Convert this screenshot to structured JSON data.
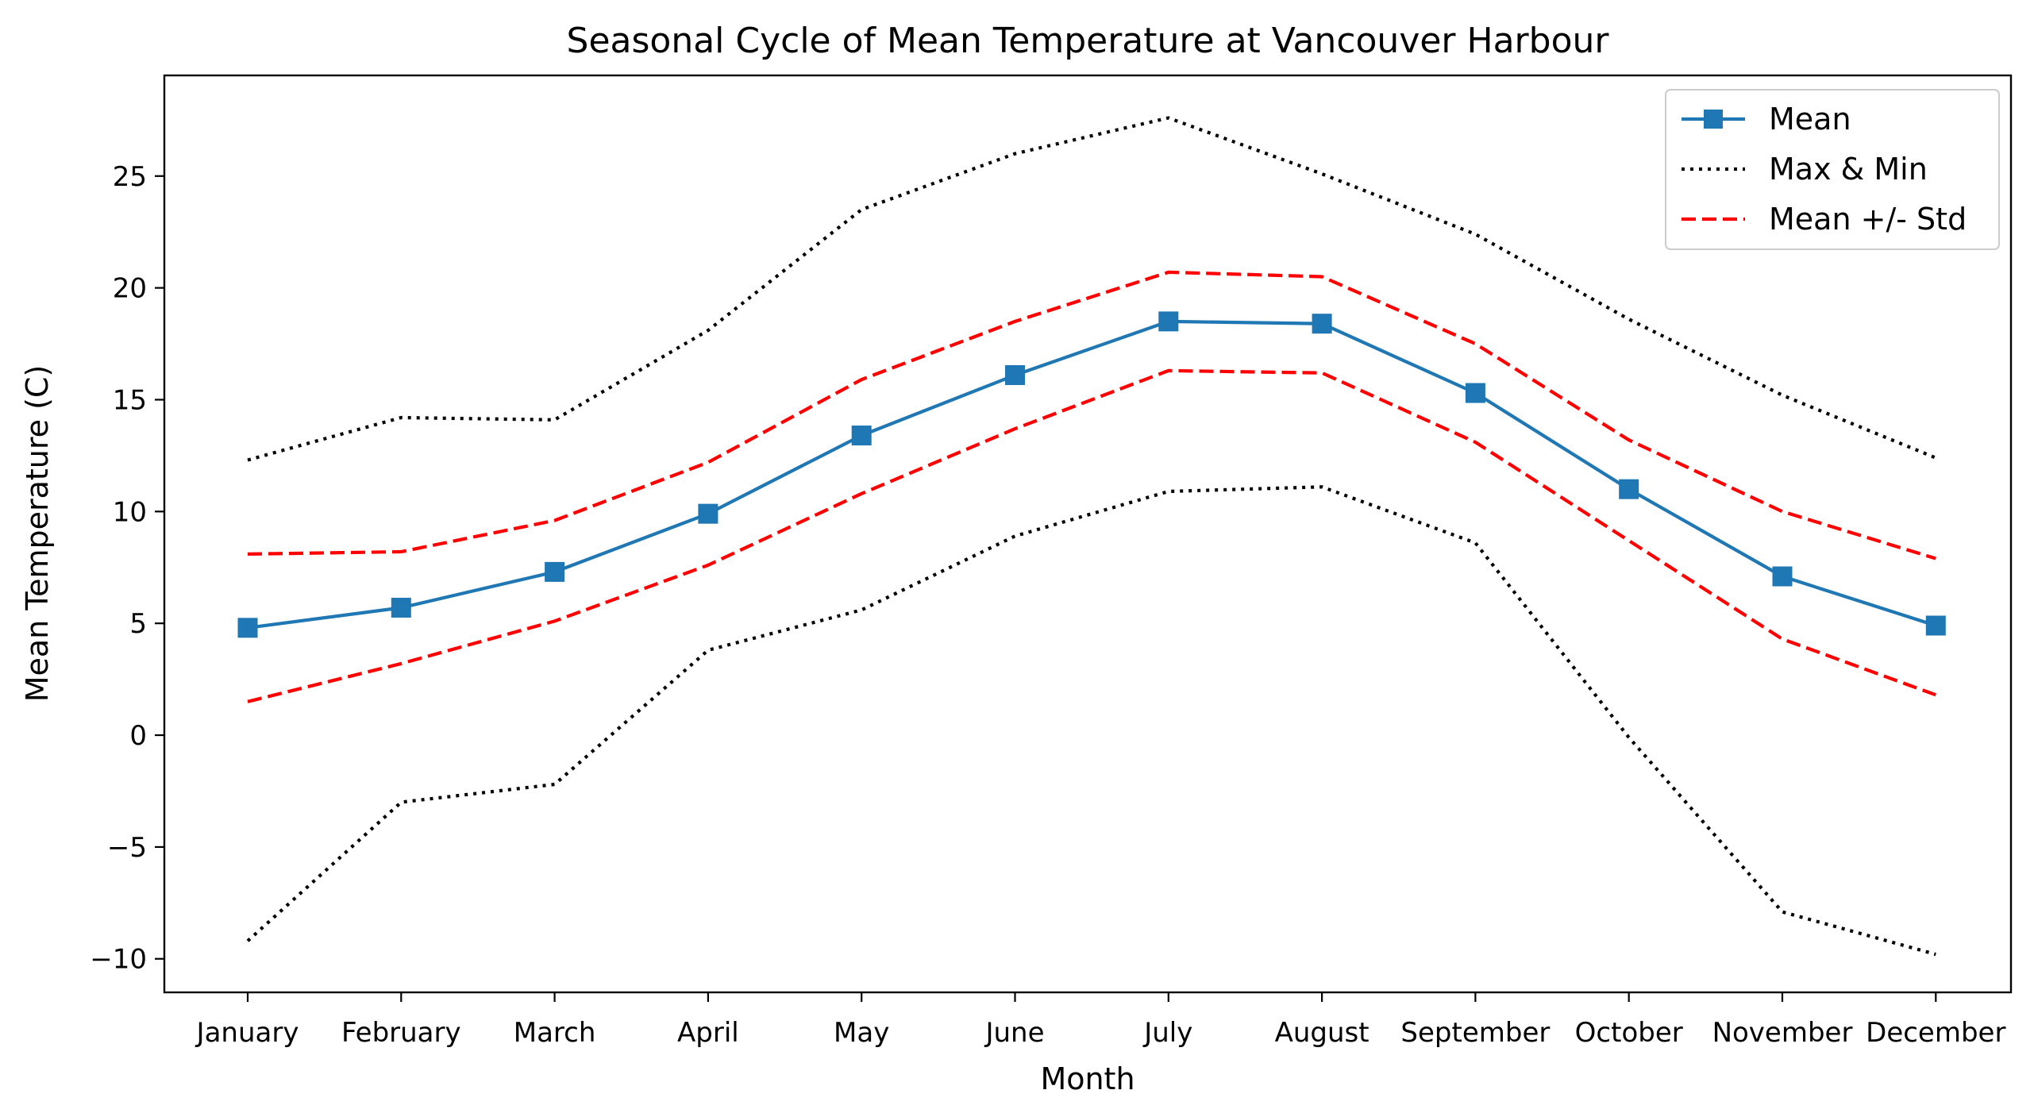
{
  "chart_data": {
    "type": "line",
    "title": "Seasonal Cycle of Mean Temperature at Vancouver Harbour",
    "xlabel": "Month",
    "ylabel": "Mean Temperature (C)",
    "ylim": [
      -11.5,
      29.5
    ],
    "yticks": [
      -10,
      -5,
      0,
      5,
      10,
      15,
      20,
      25
    ],
    "ytick_labels": [
      "−10",
      "−5",
      "0",
      "5",
      "10",
      "15",
      "20",
      "25"
    ],
    "categories": [
      "January",
      "February",
      "March",
      "April",
      "May",
      "June",
      "July",
      "August",
      "September",
      "October",
      "November",
      "December"
    ],
    "legend_position": "top-right",
    "grid": false,
    "series": [
      {
        "name": "Mean",
        "style": "solid-square-markers",
        "color": "#1f77b4",
        "values": [
          4.8,
          5.7,
          7.3,
          9.9,
          13.4,
          16.1,
          18.5,
          18.4,
          15.3,
          11.0,
          7.1,
          4.9
        ]
      },
      {
        "name": "Max & Min",
        "style": "dotted",
        "color": "#000000",
        "legend": true,
        "values": [
          12.3,
          14.2,
          14.1,
          18.1,
          23.5,
          26.0,
          27.6,
          25.1,
          22.4,
          18.6,
          15.2,
          12.4
        ]
      },
      {
        "name": "",
        "style": "dotted",
        "color": "#000000",
        "legend": false,
        "values": [
          -9.2,
          -3.0,
          -2.2,
          3.8,
          5.6,
          8.9,
          10.9,
          11.1,
          8.6,
          -0.1,
          -7.9,
          -9.8
        ]
      },
      {
        "name": "Mean +/- Std",
        "style": "dashed",
        "color": "#ff0000",
        "legend": true,
        "values": [
          8.1,
          8.2,
          9.6,
          12.2,
          15.9,
          18.5,
          20.7,
          20.5,
          17.5,
          13.2,
          10.0,
          7.9
        ]
      },
      {
        "name": "",
        "style": "dashed",
        "color": "#ff0000",
        "legend": false,
        "values": [
          1.5,
          3.2,
          5.1,
          7.6,
          10.8,
          13.7,
          16.3,
          16.2,
          13.1,
          8.7,
          4.3,
          1.8
        ]
      }
    ]
  }
}
